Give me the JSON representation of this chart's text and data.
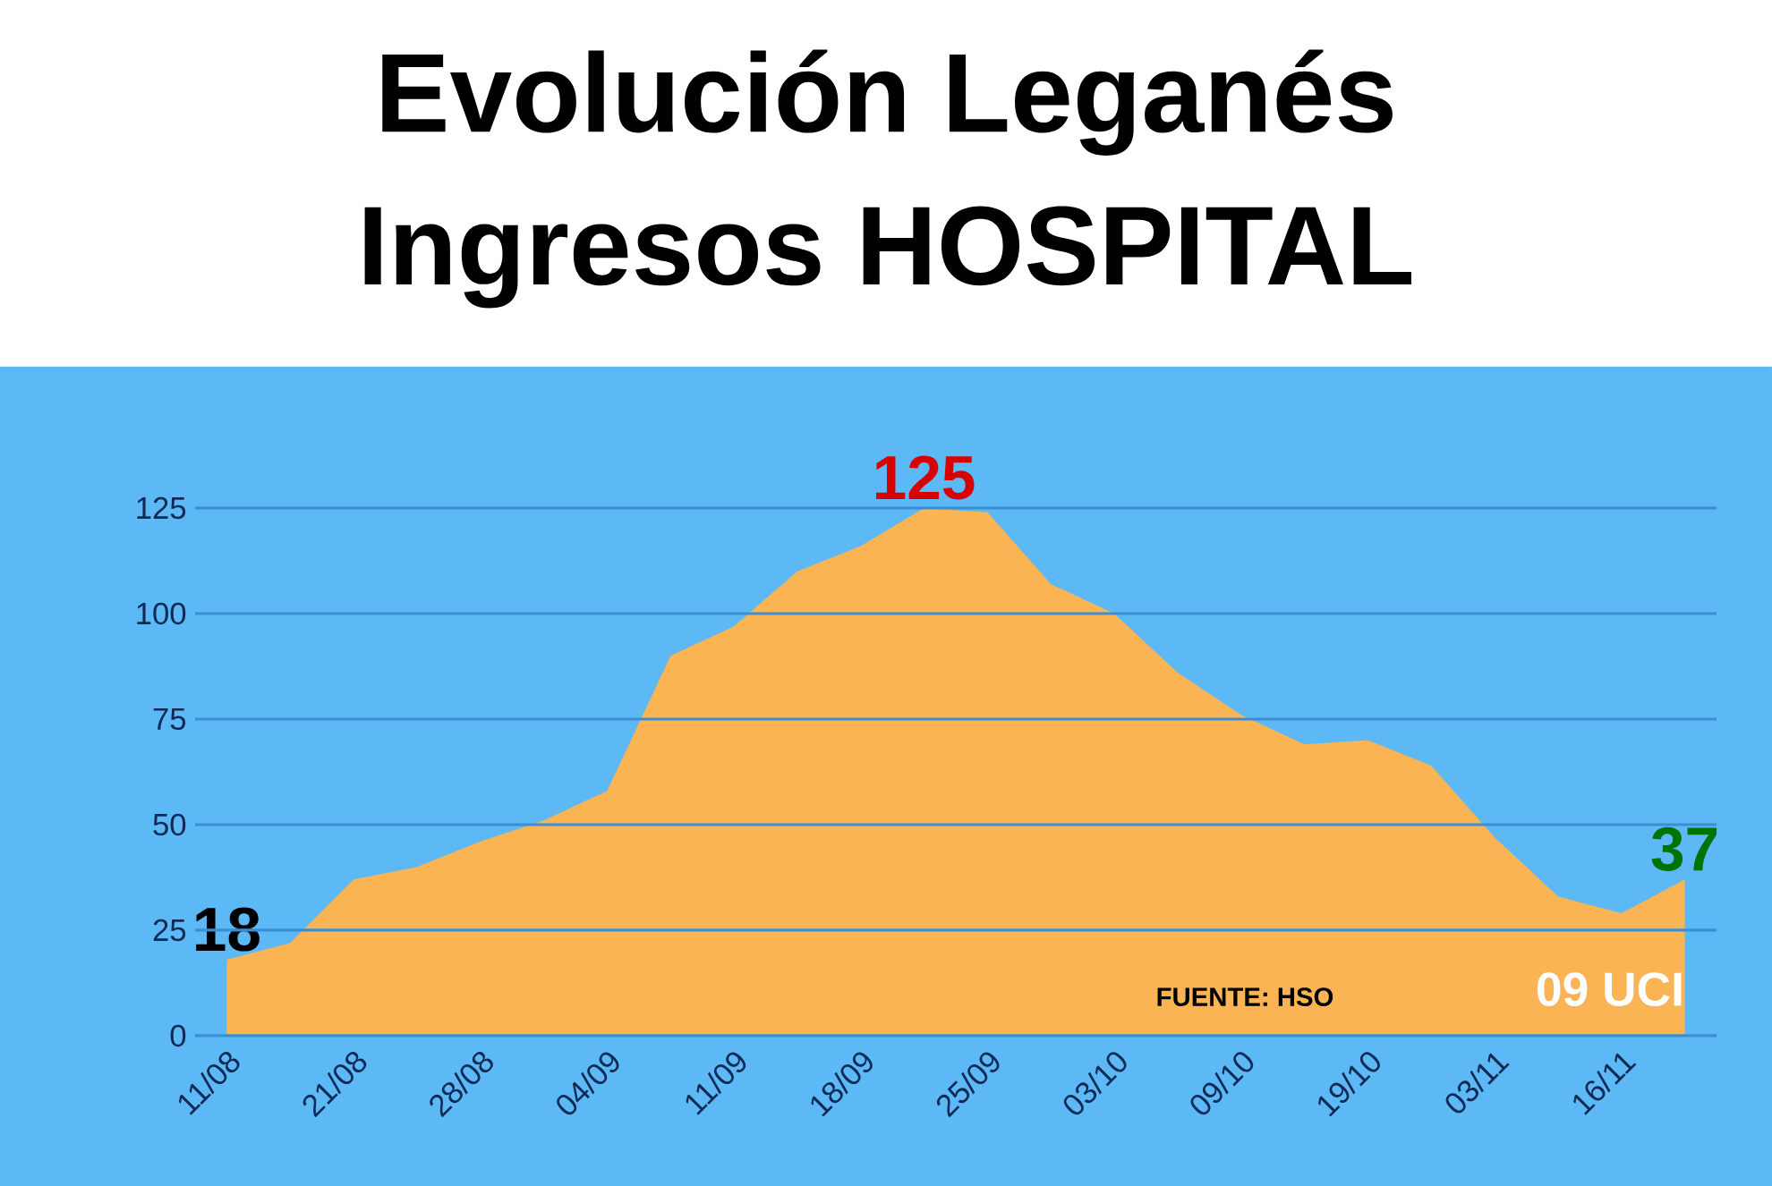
{
  "chart_data": {
    "type": "area",
    "title": "Evolución Leganés\nIngresos HOSPITAL",
    "categories": [
      "11/08",
      null,
      "21/08",
      null,
      "28/08",
      null,
      "04/09",
      null,
      "11/09",
      null,
      "18/09",
      null,
      "25/09",
      null,
      "03/10",
      null,
      "09/10",
      null,
      "19/10",
      null,
      "03/11",
      null,
      "16/11",
      null
    ],
    "values": [
      18,
      22,
      37,
      40,
      46,
      51,
      58,
      90,
      97,
      110,
      116,
      125,
      124,
      107,
      100,
      86,
      76,
      69,
      70,
      64,
      47,
      33,
      29,
      37
    ],
    "value_labels": [
      "18",
      null,
      null,
      null,
      null,
      null,
      null,
      null,
      null,
      null,
      null,
      "125",
      null,
      null,
      null,
      null,
      null,
      null,
      null,
      null,
      null,
      null,
      null,
      "37"
    ],
    "color": "#fbb454",
    "ylim": [
      0,
      125
    ],
    "yticks": [
      0,
      25,
      50,
      75,
      100,
      125
    ],
    "grid": "y",
    "annotations": [
      "FUENTE: HSO",
      "09 UCI"
    ]
  }
}
